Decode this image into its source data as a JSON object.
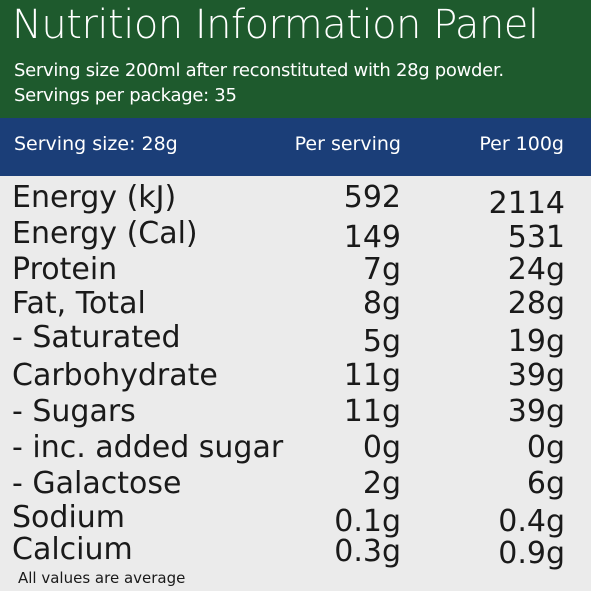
{
  "panel": {
    "title": "Nutrition Information Panel",
    "serving_line": "Serving size 200ml after reconstituted with 28g powder.",
    "servings_line": "Servings per package: 35"
  },
  "columns": {
    "label": "Serving size: 28g",
    "per_serving": "Per serving",
    "per_100g": "Per 100g"
  },
  "rows": [
    {
      "name": "Energy (kJ)",
      "per_serving": "592",
      "per_100g": "2114"
    },
    {
      "name": "Energy (Cal)",
      "per_serving": "149",
      "per_100g": "531"
    },
    {
      "name": "Protein",
      "per_serving": "7g",
      "per_100g": "24g"
    },
    {
      "name": "Fat, Total",
      "per_serving": "8g",
      "per_100g": "28g"
    },
    {
      "name": "- Saturated",
      "per_serving": "5g",
      "per_100g": "19g"
    },
    {
      "name": "Carbohydrate",
      "per_serving": "11g",
      "per_100g": "39g"
    },
    {
      "name": "- Sugars",
      "per_serving": "11g",
      "per_100g": "39g"
    },
    {
      "name": "- inc. added sugar",
      "per_serving": "0g",
      "per_100g": "0g"
    },
    {
      "name": "- Galactose",
      "per_serving": "2g",
      "per_100g": "6g"
    },
    {
      "name": "Sodium",
      "per_serving": "0.1g",
      "per_100g": "0.4g"
    },
    {
      "name": "Calcium",
      "per_serving": "0.3g",
      "per_100g": "0.9g"
    }
  ],
  "footer": "All values are average",
  "colors": {
    "header_green": "#1e5a2d",
    "column_bar_blue": "#1b3e78",
    "panel_background": "#ebebeb"
  }
}
